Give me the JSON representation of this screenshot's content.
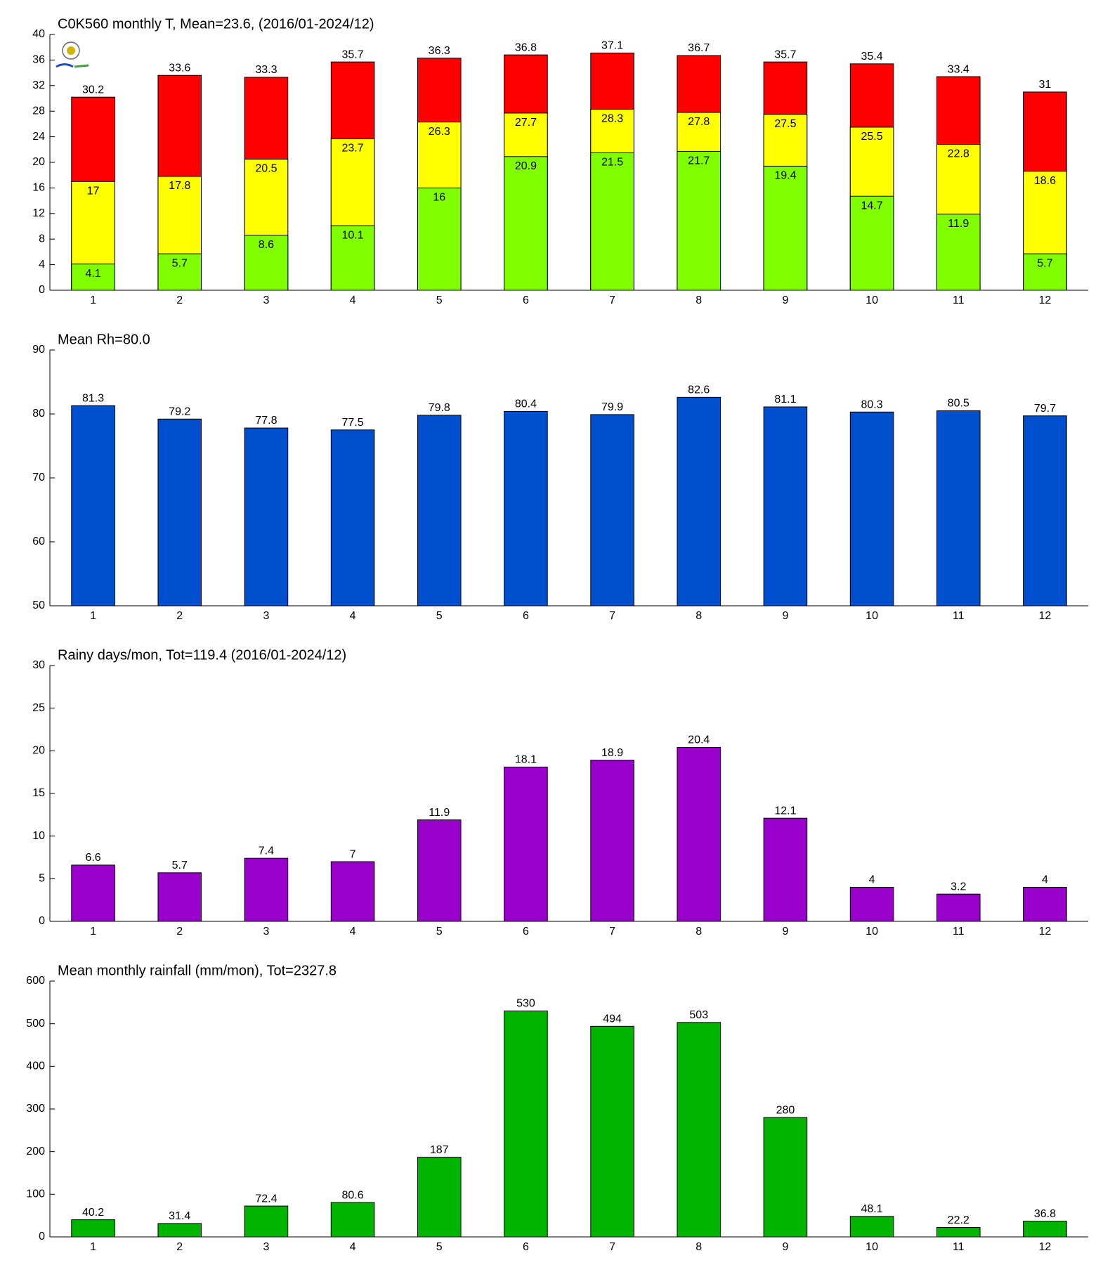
{
  "chart_data": [
    {
      "type": "bar",
      "title": "C0K560 monthly T, Mean=23.6, (2016/01-2024/12)",
      "categories": [
        "1",
        "2",
        "3",
        "4",
        "5",
        "6",
        "7",
        "8",
        "9",
        "10",
        "11",
        "12"
      ],
      "series": [
        {
          "color": "#ff0000",
          "values": [
            30.2,
            33.6,
            33.3,
            35.7,
            36.3,
            36.8,
            37.1,
            36.7,
            35.7,
            35.4,
            33.4,
            31
          ]
        },
        {
          "color": "#ffff00",
          "values": [
            17,
            17.8,
            20.5,
            23.7,
            26.3,
            27.7,
            28.3,
            27.8,
            27.5,
            25.5,
            22.8,
            18.6
          ]
        },
        {
          "color": "#80ff00",
          "values": [
            4.1,
            5.7,
            8.6,
            10.1,
            16,
            20.9,
            21.5,
            21.7,
            19.4,
            14.7,
            11.9,
            5.7
          ]
        }
      ],
      "ylim": [
        0,
        40
      ],
      "yticks": [
        0,
        4,
        8,
        12,
        16,
        20,
        24,
        28,
        32,
        36,
        40
      ]
    },
    {
      "type": "bar",
      "title": "Mean Rh=80.0",
      "categories": [
        "1",
        "2",
        "3",
        "4",
        "5",
        "6",
        "7",
        "8",
        "9",
        "10",
        "11",
        "12"
      ],
      "values": [
        81.3,
        79.2,
        77.8,
        77.5,
        79.8,
        80.4,
        79.9,
        82.6,
        81.1,
        80.3,
        80.5,
        79.7
      ],
      "color": "#004fcf",
      "ylim": [
        50,
        90
      ],
      "yticks": [
        50,
        60,
        70,
        80,
        90
      ]
    },
    {
      "type": "bar",
      "title": "Rainy days/mon, Tot=119.4 (2016/01-2024/12)",
      "categories": [
        "1",
        "2",
        "3",
        "4",
        "5",
        "6",
        "7",
        "8",
        "9",
        "10",
        "11",
        "12"
      ],
      "values": [
        6.6,
        5.7,
        7.4,
        7,
        11.9,
        18.1,
        18.9,
        20.4,
        12.1,
        4,
        3.2,
        4
      ],
      "color": "#9900cc",
      "ylim": [
        0,
        30
      ],
      "yticks": [
        0,
        5,
        10,
        15,
        20,
        25,
        30
      ]
    },
    {
      "type": "bar",
      "title": "Mean monthly rainfall (mm/mon), Tot=2327.8",
      "categories": [
        "1",
        "2",
        "3",
        "4",
        "5",
        "6",
        "7",
        "8",
        "9",
        "10",
        "11",
        "12"
      ],
      "values": [
        40.2,
        31.4,
        72.4,
        80.6,
        187,
        530,
        494,
        503,
        280,
        48.1,
        22.2,
        36.8
      ],
      "color": "#00b400",
      "ylim": [
        0,
        600
      ],
      "yticks": [
        0,
        100,
        200,
        300,
        400,
        500,
        600
      ]
    }
  ]
}
